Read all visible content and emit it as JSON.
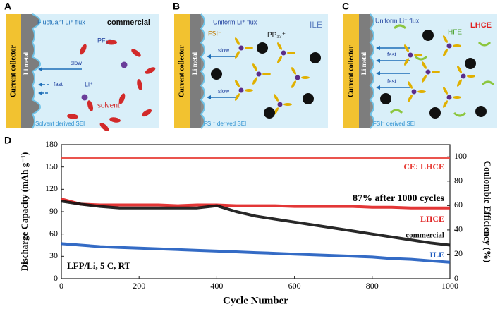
{
  "panels": [
    {
      "label": "A",
      "collector": "Current collector",
      "metal": "Li metal",
      "sei": "Solvent derived SEI",
      "texts": [
        "Fluctuant Li⁺ flux",
        "commercial",
        "PF₆⁻",
        "slow",
        "fast",
        "Li⁺",
        "solvent"
      ]
    },
    {
      "label": "B",
      "collector": "Current collector",
      "metal": "Li metal",
      "sei": "FSI⁻ derived SEI",
      "texts": [
        "Uniform Li⁺ flux",
        "ILE",
        "FSI⁻",
        "PP₁₃⁺",
        "slow",
        "slow"
      ]
    },
    {
      "label": "C",
      "collector": "Current collector",
      "metal": "Li metal",
      "sei": "FSI⁻ derived SEI",
      "texts": [
        "Uniform Li⁺ flux",
        "HFE",
        "LHCE",
        "fast",
        "fast"
      ]
    }
  ],
  "chart_data": {
    "type": "line",
    "label": "D",
    "xlabel": "Cycle Number",
    "ylabel": "Discharge Capacity (mAh g⁻¹)",
    "y2label": "Coulombic Efficiency (%)",
    "annotations": [
      "87% after 1000 cycles",
      "LFP/Li, 5 C, RT"
    ],
    "x": [
      0,
      50,
      100,
      150,
      200,
      250,
      300,
      350,
      400,
      450,
      500,
      550,
      600,
      650,
      700,
      750,
      800,
      850,
      900,
      950,
      1000
    ],
    "xlim": [
      0,
      1000
    ],
    "xticks": [
      0,
      200,
      400,
      600,
      800,
      1000
    ],
    "ylim": [
      0,
      180
    ],
    "yticks": [
      0,
      30,
      60,
      90,
      120,
      150,
      180
    ],
    "y2lim": [
      0,
      110
    ],
    "y2ticks": [
      0,
      20,
      40,
      60,
      80,
      100
    ],
    "series": [
      {
        "name": "CE: LHCE",
        "color": "#e8413a",
        "axis": "y2",
        "values": [
          99,
          99,
          99,
          99,
          99,
          99,
          99,
          99,
          99,
          99,
          99,
          99,
          99,
          99,
          99,
          99,
          99,
          99,
          99,
          99,
          99
        ]
      },
      {
        "name": "LHCE",
        "color": "#e02020",
        "values": [
          107,
          100,
          99,
          99,
          99,
          99,
          98,
          99,
          99,
          98,
          98,
          98,
          97,
          97,
          97,
          97,
          96,
          96,
          95,
          95,
          95
        ]
      },
      {
        "name": "commercial",
        "color": "#111111",
        "values": [
          104,
          100,
          97,
          95,
          95,
          95,
          95,
          95,
          98,
          90,
          84,
          80,
          76,
          72,
          68,
          64,
          60,
          56,
          52,
          48,
          45
        ]
      },
      {
        "name": "ILE",
        "color": "#1e5bbf",
        "values": [
          47,
          45,
          43,
          42,
          41,
          40,
          39,
          38,
          37,
          36,
          35,
          34,
          33,
          32,
          31,
          30,
          29,
          27,
          26,
          24,
          22
        ]
      }
    ]
  }
}
